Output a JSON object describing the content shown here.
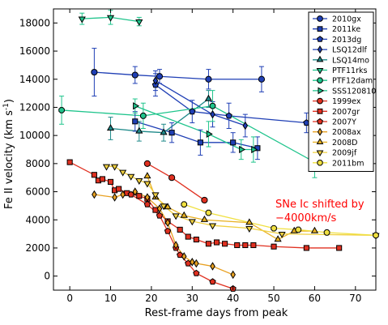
{
  "chart_data": {
    "type": "scatter",
    "xlabel": "Rest-frame days from peak",
    "ylabel": "Fe II velocity (km s",
    "ylabel_sup": "-1",
    "ylabel_close": ")",
    "xlim": [
      -4,
      75
    ],
    "ylim": [
      -1000,
      19000
    ],
    "xticks": [
      0,
      10,
      20,
      30,
      40,
      50,
      60,
      70
    ],
    "yticks": [
      0,
      2000,
      4000,
      6000,
      8000,
      10000,
      12000,
      14000,
      16000,
      18000
    ],
    "grid": false,
    "legend_position": "top-right",
    "annotation": {
      "lines": [
        "SNe Ic shifted by",
        "−4000km/s"
      ],
      "color": "#ff0000"
    },
    "series": [
      {
        "name": "2010gx",
        "color": "#1f3fb5",
        "marker": "circle",
        "line": true,
        "errorbars": true,
        "points": [
          [
            6,
            14500
          ],
          [
            16,
            14300
          ],
          [
            22,
            14200
          ],
          [
            34,
            14000
          ],
          [
            47,
            14000
          ]
        ],
        "errors": [
          1700,
          600,
          500,
          700,
          900
        ]
      },
      {
        "name": "2011ke",
        "color": "#1f3fb5",
        "marker": "square",
        "line": true,
        "errorbars": true,
        "points": [
          [
            16,
            11000
          ],
          [
            25,
            10200
          ],
          [
            32,
            9500
          ],
          [
            40,
            9500
          ],
          [
            46,
            9100
          ]
        ],
        "errors": [
          700,
          700,
          900,
          700,
          800
        ]
      },
      {
        "name": "2013dg",
        "color": "#1f3fb5",
        "marker": "pentagon",
        "line": true,
        "errorbars": true,
        "points": [
          [
            21,
            13600
          ],
          [
            30,
            11700
          ],
          [
            39,
            11400
          ],
          [
            58,
            10900
          ]
        ],
        "errors": [
          800,
          800,
          900,
          700
        ]
      },
      {
        "name": "LSQ12dlf",
        "color": "#1f3fb5",
        "marker": "diamond",
        "line": true,
        "errorbars": true,
        "points": [
          [
            21,
            13900
          ],
          [
            35,
            11500
          ],
          [
            43,
            10700
          ]
        ],
        "errors": [
          700,
          900,
          800
        ]
      },
      {
        "name": "LSQ14mo",
        "color": "#1f8a8a",
        "marker": "triangle-up",
        "line": true,
        "errorbars": true,
        "points": [
          [
            10,
            10500
          ],
          [
            17,
            10300
          ],
          [
            23,
            10200
          ],
          [
            34,
            12600
          ]
        ],
        "errors": [
          800,
          700,
          600,
          600
        ]
      },
      {
        "name": "PTF11rks",
        "color": "#1fc48c",
        "marker": "triangle-down",
        "line": true,
        "errorbars": true,
        "points": [
          [
            3,
            18300
          ],
          [
            10,
            18400
          ],
          [
            17,
            18100
          ]
        ],
        "errors": [
          400,
          500,
          300
        ]
      },
      {
        "name": "PTF12dam",
        "color": "#1fc48c",
        "marker": "octagon",
        "line": true,
        "errorbars": true,
        "points": [
          [
            -2,
            11800
          ],
          [
            18,
            11400
          ],
          [
            35,
            12100
          ],
          [
            60,
            8100
          ]
        ],
        "errors": [
          1000,
          900,
          1100,
          1100
        ]
      },
      {
        "name": "SSS120810",
        "color": "#1fc48c",
        "marker": "triangle-right",
        "line": true,
        "errorbars": true,
        "points": [
          [
            16,
            12100
          ],
          [
            34,
            10100
          ],
          [
            42,
            9000
          ],
          [
            45,
            9000
          ]
        ],
        "errors": [
          500,
          900,
          700,
          900
        ]
      },
      {
        "name": "1999ex",
        "color": "#e03020",
        "marker": "circle",
        "line": true,
        "errorbars": false,
        "points": [
          [
            19,
            8000
          ],
          [
            25,
            7000
          ],
          [
            33,
            5400
          ]
        ],
        "errors": []
      },
      {
        "name": "2007gr",
        "color": "#e03020",
        "marker": "square",
        "line": true,
        "errorbars": false,
        "points": [
          [
            0,
            8100
          ],
          [
            6,
            7200
          ],
          [
            7,
            6800
          ],
          [
            8,
            6900
          ],
          [
            10,
            6700
          ],
          [
            11,
            6100
          ],
          [
            12,
            6200
          ],
          [
            14,
            5900
          ],
          [
            17,
            5700
          ],
          [
            19,
            5500
          ],
          [
            21,
            4700
          ],
          [
            24,
            3900
          ],
          [
            27,
            3300
          ],
          [
            29,
            2800
          ],
          [
            31,
            2600
          ],
          [
            34,
            2300
          ],
          [
            36,
            2400
          ],
          [
            38,
            2300
          ],
          [
            41,
            2200
          ],
          [
            43,
            2200
          ],
          [
            45,
            2200
          ],
          [
            50,
            2100
          ],
          [
            58,
            2000
          ],
          [
            66,
            2000
          ]
        ],
        "errors": []
      },
      {
        "name": "2007Y",
        "color": "#e03020",
        "marker": "pentagon",
        "line": true,
        "errorbars": false,
        "points": [
          [
            15,
            5800
          ],
          [
            19,
            5100
          ],
          [
            22,
            4300
          ],
          [
            24,
            3200
          ],
          [
            26,
            2000
          ],
          [
            27,
            1500
          ],
          [
            29,
            900
          ],
          [
            31,
            200
          ],
          [
            35,
            -400
          ],
          [
            40,
            -900
          ]
        ],
        "errors": []
      },
      {
        "name": "2008ax",
        "color": "#e8a020",
        "marker": "diamond",
        "line": true,
        "errorbars": false,
        "points": [
          [
            6,
            5800
          ],
          [
            11,
            5600
          ],
          [
            13,
            5800
          ],
          [
            16,
            6000
          ],
          [
            19,
            5600
          ],
          [
            22,
            4800
          ],
          [
            24,
            3800
          ],
          [
            26,
            2200
          ],
          [
            28,
            1400
          ],
          [
            30,
            1000
          ],
          [
            31,
            900
          ],
          [
            35,
            700
          ],
          [
            40,
            100
          ]
        ],
        "errors": []
      },
      {
        "name": "2008D",
        "color": "#e8b020",
        "marker": "triangle-up",
        "line": true,
        "errorbars": false,
        "points": [
          [
            19,
            7100
          ],
          [
            21,
            5600
          ],
          [
            24,
            4900
          ],
          [
            28,
            4300
          ],
          [
            33,
            4000
          ],
          [
            44,
            3800
          ],
          [
            51,
            2600
          ],
          [
            55,
            3200
          ],
          [
            60,
            3200
          ]
        ],
        "errors": []
      },
      {
        "name": "2009jf",
        "color": "#f0d040",
        "marker": "triangle-down",
        "line": true,
        "errorbars": false,
        "points": [
          [
            9,
            7800
          ],
          [
            11,
            7800
          ],
          [
            13,
            7400
          ],
          [
            15,
            7100
          ],
          [
            17,
            6800
          ],
          [
            19,
            6600
          ],
          [
            21,
            5800
          ],
          [
            23,
            5000
          ],
          [
            26,
            4300
          ],
          [
            30,
            3900
          ],
          [
            35,
            3600
          ],
          [
            44,
            3400
          ],
          [
            52,
            3000
          ],
          [
            75,
            2900
          ]
        ],
        "errors": []
      },
      {
        "name": "2011bm",
        "color": "#f0e040",
        "marker": "octagon",
        "line": true,
        "errorbars": false,
        "points": [
          [
            28,
            5100
          ],
          [
            34,
            4500
          ],
          [
            50,
            3400
          ],
          [
            56,
            3300
          ],
          [
            63,
            3100
          ],
          [
            75,
            2900
          ]
        ],
        "errors": []
      }
    ]
  }
}
